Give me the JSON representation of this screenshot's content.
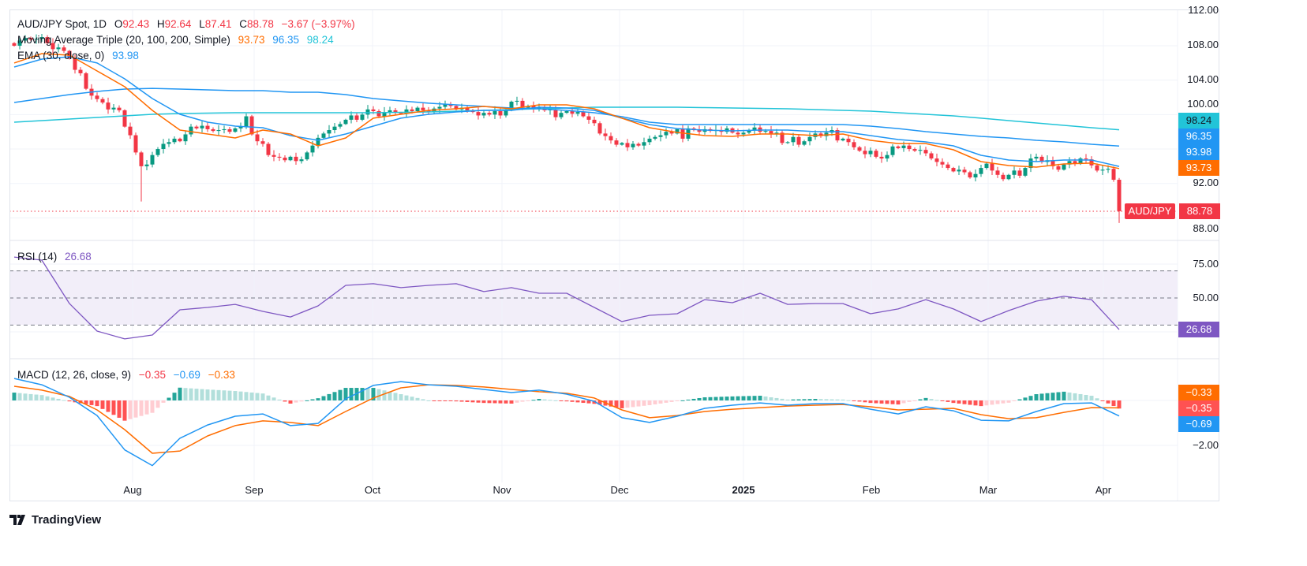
{
  "header": {
    "symbol": "AUD/JPY Spot, 1D",
    "open_label": "O",
    "open": "92.43",
    "high_label": "H",
    "high": "92.64",
    "low_label": "L",
    "low": "87.41",
    "close_label": "C",
    "close": "88.78",
    "change": "−3.67 (−3.97%)"
  },
  "ma_legend": {
    "label": "Moving Average Triple (20, 100, 200, Simple)",
    "ma20": "93.73",
    "ma100": "96.35",
    "ma200": "98.24"
  },
  "ema_legend": {
    "label": "EMA (30, close, 0)",
    "value": "93.98"
  },
  "rsi_legend": {
    "label": "RSI (14)",
    "value": "26.68"
  },
  "macd_legend": {
    "label": "MACD (12, 26, close, 9)",
    "hist": "−0.35",
    "macd": "−0.69",
    "signal": "−0.33"
  },
  "price_axis": [
    "112.00",
    "108.00",
    "104.00",
    "100.00",
    "92.00",
    "88.00"
  ],
  "rsi_axis": [
    "75.00",
    "50.00"
  ],
  "macd_axis": [
    "−2.00"
  ],
  "badges": {
    "ma200": "98.24",
    "ma100": "96.35",
    "ema": "93.98",
    "ma20": "93.73",
    "symbol": "AUD/JPY",
    "last": "88.78",
    "rsi": "26.68",
    "signal": "−0.33",
    "hist": "−0.35",
    "macd": "−0.69"
  },
  "time_axis": [
    "Aug",
    "Sep",
    "Oct",
    "Nov",
    "Dec",
    "2025",
    "Feb",
    "Mar",
    "Apr"
  ],
  "brand": "TradingView",
  "colors": {
    "up": "#089981",
    "down": "#f23645",
    "ma20": "#ff6d00",
    "ma100": "#2196f3",
    "ma200": "#22c4d8",
    "ema": "#2196f3",
    "rsi": "#7e57c2",
    "macd": "#2196f3",
    "signal": "#ff6d00"
  },
  "chart_data": {
    "type": "candlestick",
    "title": "AUD/JPY Spot, 1D",
    "ylim": [
      86.5,
      112
    ],
    "closes": [
      108.0,
      108.6,
      108.9,
      108.7,
      108.8,
      109.0,
      108.3,
      107.6,
      107.8,
      107.4,
      106.5,
      105.2,
      104.8,
      103.0,
      102.2,
      101.8,
      101.4,
      100.6,
      100.8,
      100.5,
      98.6,
      97.6,
      95.6,
      94.0,
      94.2,
      95.3,
      96.0,
      96.6,
      96.8,
      97.2,
      96.9,
      97.7,
      98.6,
      98.4,
      98.7,
      98.3,
      98.1,
      98.2,
      98.3,
      98.0,
      98.4,
      98.6,
      99.8,
      97.7,
      96.9,
      96.6,
      95.3,
      95.1,
      95.0,
      94.7,
      95.1,
      94.6,
      94.8,
      95.6,
      96.4,
      97.3,
      97.8,
      98.2,
      98.6,
      98.9,
      99.4,
      99.9,
      99.4,
      100.0,
      100.6,
      100.4,
      99.8,
      100.3,
      100.5,
      100.2,
      100.1,
      100.6,
      100.4,
      100.8,
      100.5,
      100.3,
      100.7,
      100.9,
      101.2,
      101.0,
      100.6,
      100.8,
      100.5,
      100.3,
      99.9,
      100.2,
      100.0,
      100.4,
      99.9,
      100.5,
      101.5,
      101.6,
      100.8,
      101.0,
      100.7,
      100.9,
      100.5,
      100.6,
      99.7,
      100.2,
      100.4,
      100.1,
      100.3,
      99.8,
      99.4,
      99.0,
      97.8,
      97.5,
      97.0,
      96.5,
      96.7,
      96.2,
      96.6,
      96.4,
      96.8,
      97.2,
      97.4,
      97.6,
      98.0,
      97.8,
      98.3,
      97.2,
      98.4,
      98.2,
      98.0,
      98.3,
      98.1,
      98.2,
      98.0,
      98.4,
      97.9,
      97.7,
      97.9,
      98.2,
      98.5,
      98.0,
      98.1,
      97.8,
      97.9,
      96.7,
      96.8,
      97.4,
      96.5,
      96.9,
      97.4,
      97.8,
      97.5,
      97.9,
      98.2,
      97.0,
      97.2,
      96.8,
      96.2,
      95.8,
      95.4,
      95.8,
      95.1,
      94.9,
      95.3,
      96.3,
      96.1,
      96.4,
      96.0,
      95.8,
      95.9,
      95.5,
      94.9,
      94.5,
      94.2,
      93.8,
      93.4,
      93.6,
      93.3,
      92.7,
      93.1,
      93.8,
      94.3,
      93.5,
      93.0,
      92.5,
      93.0,
      93.5,
      92.9,
      93.8,
      94.9,
      95.1,
      94.5,
      94.7,
      94.0,
      93.6,
      94.2,
      94.6,
      94.3,
      94.9,
      94.8,
      94.1,
      93.5,
      93.6,
      93.7,
      92.43
    ],
    "last_candle": {
      "open": 92.43,
      "high": 92.64,
      "low": 87.41,
      "close": 88.78
    },
    "notable_low": {
      "index": 23,
      "low": 89.9
    },
    "sample_step": 5,
    "ma20": [
      105.99,
      107.08,
      106.9,
      105.07,
      103.24,
      100.49,
      98.2,
      97.74,
      97.29,
      98.2,
      97.74,
      96.37,
      97.29,
      99.58,
      100.03,
      100.49,
      100.67,
      100.95,
      100.67,
      101.13,
      101.13,
      100.67,
      99.58,
      98.48,
      97.93,
      97.56,
      97.47,
      97.74,
      97.74,
      97.56,
      97.74,
      97.01,
      96.64,
      96.64,
      95.91,
      94.54,
      94.08,
      93.9,
      94.26,
      94.36,
      93.73
    ],
    "ma100": [
      101.41,
      101.86,
      102.32,
      102.69,
      102.96,
      103.05,
      102.96,
      102.87,
      102.78,
      102.78,
      102.6,
      102.6,
      102.32,
      101.86,
      101.59,
      101.32,
      101.13,
      100.95,
      100.77,
      100.67,
      100.49,
      100.22,
      99.76,
      99.12,
      98.84,
      98.84,
      98.84,
      98.84,
      98.84,
      98.84,
      98.84,
      98.66,
      98.38,
      98.02,
      97.74,
      97.47,
      97.29,
      97.01,
      96.83,
      96.55,
      96.35
    ],
    "ma200": [
      99.12,
      99.3,
      99.48,
      99.67,
      99.85,
      100.03,
      100.12,
      100.17,
      100.22,
      100.22,
      100.22,
      100.22,
      100.22,
      100.22,
      100.26,
      100.31,
      100.4,
      100.49,
      100.58,
      100.67,
      100.77,
      100.86,
      100.86,
      100.86,
      100.86,
      100.81,
      100.77,
      100.72,
      100.67,
      100.58,
      100.49,
      100.4,
      100.22,
      100.03,
      99.85,
      99.58,
      99.3,
      99.03,
      98.75,
      98.48,
      98.24
    ],
    "ema30": [
      105.53,
      106.44,
      106.72,
      105.99,
      104.15,
      101.86,
      100.03,
      99.12,
      98.66,
      98.48,
      97.56,
      97.01,
      97.74,
      98.66,
      99.58,
      100.03,
      100.31,
      100.49,
      100.49,
      100.86,
      100.77,
      100.49,
      99.58,
      98.84,
      98.38,
      98.2,
      98.11,
      98.2,
      98.2,
      98.02,
      98.02,
      97.56,
      97.1,
      96.83,
      96.37,
      95.27,
      94.72,
      94.54,
      94.72,
      94.72,
      93.98
    ],
    "rsi": {
      "levels": [
        70,
        50,
        30
      ],
      "ylim": [
        20,
        85
      ],
      "values": [
        80.2,
        77.9,
        45.9,
        25.6,
        19.8,
        22.7,
        41.3,
        43.0,
        45.3,
        40.1,
        36.0,
        44.2,
        59.3,
        60.5,
        57.6,
        59.3,
        60.5,
        54.7,
        57.6,
        53.5,
        53.5,
        43.0,
        32.6,
        37.2,
        38.4,
        48.8,
        46.5,
        53.5,
        45.3,
        45.9,
        45.9,
        38.4,
        41.9,
        48.8,
        41.9,
        32.6,
        40.7,
        47.7,
        51.2,
        48.8,
        26.68
      ]
    },
    "macd": {
      "macd": [
        0.98,
        0.7,
        0.14,
        -0.67,
        -2.2,
        -2.9,
        -1.68,
        -1.09,
        -0.7,
        -0.6,
        -1.12,
        -1.02,
        0.07,
        0.67,
        0.84,
        0.7,
        0.63,
        0.49,
        0.35,
        0.46,
        0.28,
        -0.04,
        -0.77,
        -0.98,
        -0.7,
        -0.35,
        -0.21,
        -0.11,
        -0.21,
        -0.14,
        -0.14,
        -0.39,
        -0.6,
        -0.28,
        -0.46,
        -0.88,
        -0.91,
        -0.49,
        -0.14,
        -0.11,
        -0.69
      ],
      "signal": [
        0.63,
        0.46,
        0.18,
        -0.42,
        -1.3,
        -2.35,
        -2.25,
        -1.58,
        -1.12,
        -0.91,
        -0.98,
        -1.12,
        -0.49,
        0.11,
        0.56,
        0.7,
        0.67,
        0.6,
        0.49,
        0.39,
        0.32,
        0.11,
        -0.42,
        -0.77,
        -0.67,
        -0.49,
        -0.39,
        -0.32,
        -0.25,
        -0.21,
        -0.18,
        -0.28,
        -0.42,
        -0.39,
        -0.35,
        -0.63,
        -0.81,
        -0.77,
        -0.53,
        -0.32,
        -0.33
      ]
    }
  }
}
